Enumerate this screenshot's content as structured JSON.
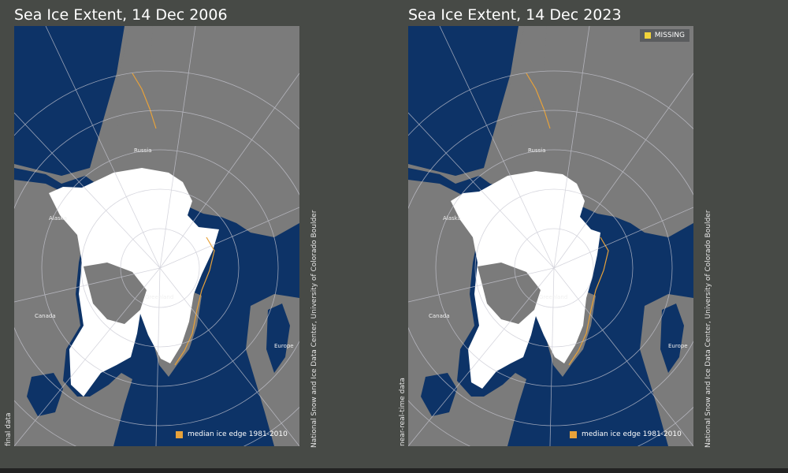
{
  "panels": [
    {
      "title": "Sea Ice Extent, 14 Dec 2006",
      "data_status": "final data",
      "credit": "National Snow and Ice Data Center, University of Colorado Boulder",
      "legend_median": "median ice edge 1981-2010",
      "labels": {
        "russia": "Russia",
        "alaska": "Alaska",
        "canada": "Canada",
        "greenland": "Greenland",
        "europe": "Europe"
      }
    },
    {
      "title": "Sea Ice Extent, 14 Dec 2023",
      "data_status": "near-real-time data",
      "credit": "National Snow and Ice Data Center, University of Colorado Boulder",
      "legend_median": "median ice edge 1981-2010",
      "legend_missing": "MISSING",
      "labels": {
        "russia": "Russia",
        "alaska": "Alaska",
        "canada": "Canada",
        "greenland": "Greenland",
        "europe": "Europe"
      }
    }
  ],
  "colors": {
    "background": "#474a46",
    "ocean": "#0d3367",
    "land": "#7b7b7b",
    "ice": "#ffffff",
    "median_edge": "#e8a23a",
    "missing": "#f2d33b"
  }
}
